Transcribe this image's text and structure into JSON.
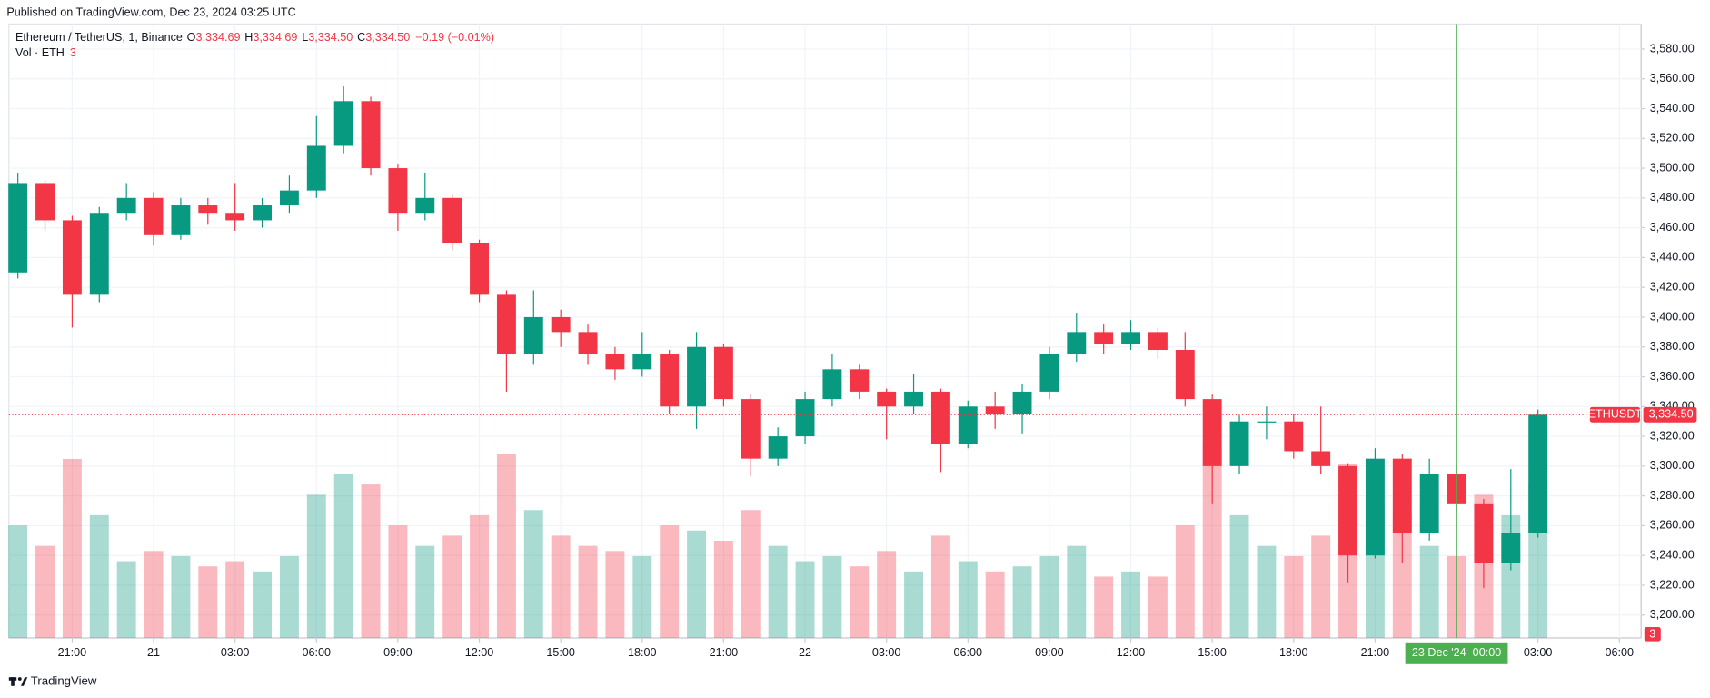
{
  "header": {
    "published": "Published on TradingView.com, Dec 23, 2024 03:25 UTC"
  },
  "legend": {
    "symbol": "Ethereum / TetherUS, 1, Binance",
    "o": "O",
    "open": "3,334.69",
    "h": "H",
    "high": "3,334.69",
    "l": "L",
    "low": "3,334.50",
    "c": "C",
    "close": "3,334.50",
    "change": "−0.19 (−0.01%)",
    "volume_name": "Vol · ETH",
    "volume_value": "3"
  },
  "footer": {
    "brand": "TradingView"
  },
  "chart_data": {
    "type": "candlestick",
    "up_color": "#089981",
    "down_color": "#f23645",
    "x": [
      1,
      2,
      3,
      4,
      5,
      6,
      7,
      8,
      9,
      10,
      11,
      12,
      13,
      14,
      15,
      16,
      17,
      18,
      19,
      20,
      21,
      22,
      23,
      24,
      25,
      26,
      27,
      28,
      29,
      30,
      31,
      32,
      33,
      34,
      35,
      36,
      37,
      38,
      39,
      40,
      41,
      42,
      43,
      44,
      45,
      46,
      47,
      48,
      49,
      50,
      51,
      52,
      53,
      54,
      55,
      56,
      57
    ],
    "open": [
      3430,
      3490,
      3465,
      3415,
      3470,
      3480,
      3455,
      3475,
      3470,
      3465,
      3475,
      3485,
      3515,
      3545,
      3500,
      3470,
      3480,
      3450,
      3415,
      3375,
      3400,
      3390,
      3375,
      3365,
      3375,
      3340,
      3380,
      3345,
      3305,
      3320,
      3345,
      3365,
      3350,
      3340,
      3350,
      3315,
      3340,
      3335,
      3350,
      3375,
      3390,
      3382,
      3390,
      3378,
      3345,
      3300,
      3330,
      3330,
      3310,
      3300,
      3240,
      3305,
      3255,
      3295,
      3275,
      3235,
      3255
    ],
    "high": [
      3497,
      3492,
      3468,
      3474,
      3490,
      3484,
      3480,
      3480,
      3490,
      3480,
      3495,
      3535,
      3555,
      3548,
      3503,
      3497,
      3482,
      3452,
      3418,
      3418,
      3405,
      3395,
      3380,
      3390,
      3378,
      3390,
      3382,
      3348,
      3326,
      3350,
      3375,
      3368,
      3352,
      3362,
      3352,
      3344,
      3350,
      3355,
      3380,
      3403,
      3395,
      3398,
      3393,
      3390,
      3348,
      3334,
      3340,
      3335,
      3340,
      3302,
      3312,
      3308,
      3305,
      3300,
      3278,
      3298,
      3338
    ],
    "low": [
      3426,
      3458,
      3393,
      3410,
      3465,
      3448,
      3452,
      3462,
      3458,
      3460,
      3470,
      3480,
      3510,
      3495,
      3458,
      3465,
      3445,
      3410,
      3350,
      3368,
      3380,
      3368,
      3358,
      3360,
      3335,
      3325,
      3340,
      3293,
      3300,
      3315,
      3340,
      3345,
      3318,
      3335,
      3296,
      3312,
      3325,
      3322,
      3345,
      3370,
      3375,
      3378,
      3372,
      3340,
      3275,
      3295,
      3318,
      3305,
      3295,
      3222,
      3238,
      3235,
      3250,
      3268,
      3218,
      3230,
      3252
    ],
    "close": [
      3490,
      3465,
      3415,
      3470,
      3480,
      3455,
      3475,
      3470,
      3465,
      3475,
      3485,
      3515,
      3545,
      3500,
      3470,
      3480,
      3450,
      3415,
      3375,
      3400,
      3390,
      3375,
      3365,
      3375,
      3340,
      3380,
      3345,
      3305,
      3320,
      3345,
      3365,
      3350,
      3340,
      3350,
      3315,
      3340,
      3335,
      3350,
      3375,
      3390,
      3382,
      3390,
      3378,
      3345,
      3300,
      3330,
      3330,
      3310,
      3300,
      3240,
      3305,
      3255,
      3295,
      3275,
      3235,
      3255,
      3334.5
    ],
    "volume": [
      22000,
      18000,
      35000,
      24000,
      15000,
      17000,
      16000,
      14000,
      15000,
      13000,
      16000,
      28000,
      32000,
      30000,
      22000,
      18000,
      20000,
      24000,
      36000,
      25000,
      20000,
      18000,
      17000,
      16000,
      22000,
      21000,
      19000,
      25000,
      18000,
      15000,
      16000,
      14000,
      17000,
      13000,
      20000,
      15000,
      13000,
      14000,
      16000,
      18000,
      12000,
      13000,
      12000,
      22000,
      38000,
      24000,
      18000,
      16000,
      20000,
      34000,
      26000,
      24000,
      18000,
      16000,
      28000,
      24000,
      30000
    ],
    "vlim": [
      0,
      120000
    ],
    "xlim": [
      0.67,
      60.8
    ],
    "xticks": [
      {
        "value": 3,
        "label": "21:00"
      },
      {
        "value": 6,
        "label": "21"
      },
      {
        "value": 9,
        "label": "03:00"
      },
      {
        "value": 12,
        "label": "06:00"
      },
      {
        "value": 15,
        "label": "09:00"
      },
      {
        "value": 18,
        "label": "12:00"
      },
      {
        "value": 21,
        "label": "15:00"
      },
      {
        "value": 24,
        "label": "18:00"
      },
      {
        "value": 27,
        "label": "21:00"
      },
      {
        "value": 30,
        "label": "22"
      },
      {
        "value": 33,
        "label": "03:00"
      },
      {
        "value": 36,
        "label": "06:00"
      },
      {
        "value": 39,
        "label": "09:00"
      },
      {
        "value": 42,
        "label": "12:00"
      },
      {
        "value": 45,
        "label": "15:00"
      },
      {
        "value": 48,
        "label": "18:00"
      },
      {
        "value": 51,
        "label": "21:00"
      },
      {
        "value": 57,
        "label": "03:00"
      },
      {
        "value": 60,
        "label": "06:00"
      }
    ],
    "ylim": [
      3184.6,
      3596.8
    ],
    "yticks": [
      {
        "value": 3200,
        "label": "3,200.00"
      },
      {
        "value": 3220,
        "label": "3,220.00"
      },
      {
        "value": 3240,
        "label": "3,240.00"
      },
      {
        "value": 3260,
        "label": "3,260.00"
      },
      {
        "value": 3280,
        "label": "3,280.00"
      },
      {
        "value": 3300,
        "label": "3,300.00"
      },
      {
        "value": 3320,
        "label": "3,320.00"
      },
      {
        "value": 3340,
        "label": "3,340.00"
      },
      {
        "value": 3360,
        "label": "3,360.00"
      },
      {
        "value": 3380,
        "label": "3,380.00"
      },
      {
        "value": 3400,
        "label": "3,400.00"
      },
      {
        "value": 3420,
        "label": "3,420.00"
      },
      {
        "value": 3440,
        "label": "3,440.00"
      },
      {
        "value": 3460,
        "label": "3,460.00"
      },
      {
        "value": 3480,
        "label": "3,480.00"
      },
      {
        "value": 3500,
        "label": "3,500.00"
      },
      {
        "value": 3520,
        "label": "3,520.00"
      },
      {
        "value": 3540,
        "label": "3,540.00"
      },
      {
        "value": 3560,
        "label": "3,560.00"
      },
      {
        "value": 3580,
        "label": "3,580.00"
      }
    ],
    "grid": true,
    "last_price": {
      "symbol": "ETHUSDT",
      "value": 3334.5,
      "label": "3,334.50"
    },
    "crosshair": {
      "x": 54,
      "label": "23 Dec '24  00:00",
      "color": "#4caf50"
    }
  }
}
